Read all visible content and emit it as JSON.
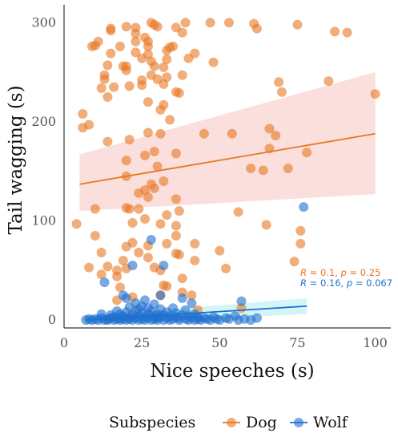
{
  "chart_data": {
    "type": "scatter",
    "xlabel": "Nice speeches (s)",
    "ylabel": "Tail wagging (s)",
    "xlim": [
      0,
      105
    ],
    "ylim": [
      -8,
      318
    ],
    "x_ticks": [
      0,
      25,
      50,
      75,
      100
    ],
    "y_ticks": [
      0,
      100,
      200,
      300
    ],
    "grid": false,
    "legend": {
      "title": "Subspecies",
      "position": "bottom"
    },
    "series": [
      {
        "name": "Dog",
        "color": "#E87722",
        "fill_color": "#F4B9B2",
        "regression": {
          "x": [
            5,
            100
          ],
          "y": [
            137,
            188
          ]
        },
        "confidence_band": {
          "x": [
            5,
            100
          ],
          "lower": [
            110,
            127
          ],
          "upper": [
            167,
            250
          ]
        },
        "stat_label": {
          "R": "0.1",
          "p": "0.25"
        },
        "points": [
          [
            4,
            97
          ],
          [
            6,
            208
          ],
          [
            6,
            194
          ],
          [
            8,
            197
          ],
          [
            9,
            276
          ],
          [
            10,
            277
          ],
          [
            10,
            112
          ],
          [
            8,
            53
          ],
          [
            10,
            85
          ],
          [
            11,
            281
          ],
          [
            12,
            234
          ],
          [
            12,
            68
          ],
          [
            12,
            46
          ],
          [
            13,
            243
          ],
          [
            13,
            247
          ],
          [
            14,
            257
          ],
          [
            14,
            54
          ],
          [
            14,
            225
          ],
          [
            14,
            180
          ],
          [
            15,
            292
          ],
          [
            15,
            294
          ],
          [
            15,
            269
          ],
          [
            16,
            235
          ],
          [
            17,
            50
          ],
          [
            17,
            44
          ],
          [
            17,
            20
          ],
          [
            18,
            276
          ],
          [
            18,
            33
          ],
          [
            19,
            256
          ],
          [
            19,
            60
          ],
          [
            20,
            296
          ],
          [
            20,
            252
          ],
          [
            20,
            161
          ],
          [
            20,
            145
          ],
          [
            20,
            113
          ],
          [
            20,
            74
          ],
          [
            20,
            52
          ],
          [
            20,
            256
          ],
          [
            21,
            236
          ],
          [
            21,
            182
          ],
          [
            21,
            112
          ],
          [
            22,
            98
          ],
          [
            22,
            78
          ],
          [
            22,
            23
          ],
          [
            23,
            295
          ],
          [
            23,
            281
          ],
          [
            23,
            270
          ],
          [
            23,
            289
          ],
          [
            24,
            128
          ],
          [
            24,
            112
          ],
          [
            24,
            68
          ],
          [
            25,
            264
          ],
          [
            25,
            242
          ],
          [
            25,
            237
          ],
          [
            26,
            285
          ],
          [
            26,
            166
          ],
          [
            26,
            131
          ],
          [
            26,
            102
          ],
          [
            27,
            281
          ],
          [
            27,
            276
          ],
          [
            27,
            268
          ],
          [
            27,
            220
          ],
          [
            27,
            189
          ],
          [
            27,
            124
          ],
          [
            27,
            75
          ],
          [
            27,
            63
          ],
          [
            28,
            300
          ],
          [
            28,
            261
          ],
          [
            28,
            247
          ],
          [
            28,
            137
          ],
          [
            29,
            298
          ],
          [
            29,
            256
          ],
          [
            29,
            170
          ],
          [
            29,
            133
          ],
          [
            29,
            53
          ],
          [
            30,
            296
          ],
          [
            30,
            243
          ],
          [
            30,
            155
          ],
          [
            31,
            212
          ],
          [
            31,
            188
          ],
          [
            31,
            97
          ],
          [
            31,
            50
          ],
          [
            31,
            25
          ],
          [
            32,
            255
          ],
          [
            32,
            238
          ],
          [
            32,
            217
          ],
          [
            32,
            140
          ],
          [
            32,
            35
          ],
          [
            33,
            272
          ],
          [
            33,
            263
          ],
          [
            33,
            245
          ],
          [
            33,
            106
          ],
          [
            33,
            77
          ],
          [
            33,
            34
          ],
          [
            34,
            275
          ],
          [
            34,
            202
          ],
          [
            35,
            276
          ],
          [
            36,
            295
          ],
          [
            36,
            230
          ],
          [
            36,
            168
          ],
          [
            36,
            122
          ],
          [
            36,
            95
          ],
          [
            36,
            85
          ],
          [
            36,
            67
          ],
          [
            37,
            229
          ],
          [
            37,
            110
          ],
          [
            37,
            66
          ],
          [
            38,
            290
          ],
          [
            38,
            247
          ],
          [
            38,
            42
          ],
          [
            38,
            28
          ],
          [
            39,
            300
          ],
          [
            40,
            264
          ],
          [
            41,
            25
          ],
          [
            42,
            269
          ],
          [
            42,
            77
          ],
          [
            42,
            60
          ],
          [
            43,
            10
          ],
          [
            45,
            188
          ],
          [
            47,
            300
          ],
          [
            48,
            260
          ],
          [
            50,
            70
          ],
          [
            52,
            52
          ],
          [
            53,
            300
          ],
          [
            54,
            188
          ],
          [
            56,
            109
          ],
          [
            57,
            12
          ],
          [
            60,
            153
          ],
          [
            61,
            299
          ],
          [
            62,
            294
          ],
          [
            64,
            151
          ],
          [
            65,
            96
          ],
          [
            66,
            193
          ],
          [
            66,
            173
          ],
          [
            68,
            186
          ],
          [
            69,
            240
          ],
          [
            70,
            230
          ],
          [
            72,
            153
          ],
          [
            74,
            59
          ],
          [
            75,
            298
          ],
          [
            76,
            90
          ],
          [
            76,
            77
          ],
          [
            78,
            169
          ],
          [
            85,
            241
          ],
          [
            87,
            291
          ],
          [
            91,
            290
          ],
          [
            100,
            228
          ]
        ]
      },
      {
        "name": "Wolf",
        "color": "#1F6FCF",
        "fill_color": "#9FE8F0",
        "regression": {
          "x": [
            7,
            78
          ],
          "y": [
            0,
            14
          ]
        },
        "confidence_band": {
          "x": [
            7,
            78
          ],
          "lower": [
            -5,
            6
          ],
          "upper": [
            4,
            22
          ]
        },
        "stat_label": {
          "R": "0.16",
          "p": "0.067"
        },
        "points": [
          [
            7,
            0
          ],
          [
            8,
            1
          ],
          [
            9,
            0
          ],
          [
            10,
            1
          ],
          [
            11,
            0
          ],
          [
            12,
            2
          ],
          [
            12,
            6
          ],
          [
            13,
            0
          ],
          [
            13,
            38
          ],
          [
            14,
            1
          ],
          [
            14,
            0
          ],
          [
            15,
            2
          ],
          [
            15,
            5
          ],
          [
            16,
            0
          ],
          [
            16,
            3
          ],
          [
            17,
            1
          ],
          [
            17,
            9
          ],
          [
            18,
            0
          ],
          [
            18,
            2
          ],
          [
            18,
            6
          ],
          [
            19,
            1
          ],
          [
            19,
            4
          ],
          [
            19,
            25
          ],
          [
            20,
            0
          ],
          [
            20,
            8
          ],
          [
            20,
            22
          ],
          [
            21,
            1
          ],
          [
            21,
            3
          ],
          [
            21,
            13
          ],
          [
            22,
            0
          ],
          [
            22,
            5
          ],
          [
            22,
            55
          ],
          [
            23,
            2
          ],
          [
            23,
            17
          ],
          [
            23,
            9
          ],
          [
            24,
            0
          ],
          [
            24,
            4
          ],
          [
            24,
            11
          ],
          [
            25,
            1
          ],
          [
            25,
            7
          ],
          [
            25,
            14
          ],
          [
            26,
            0
          ],
          [
            26,
            3
          ],
          [
            26,
            20
          ],
          [
            27,
            2
          ],
          [
            27,
            6
          ],
          [
            27,
            12
          ],
          [
            28,
            0
          ],
          [
            28,
            9
          ],
          [
            28,
            81
          ],
          [
            29,
            1
          ],
          [
            29,
            4
          ],
          [
            29,
            16
          ],
          [
            30,
            0
          ],
          [
            30,
            6
          ],
          [
            30,
            2
          ],
          [
            31,
            3
          ],
          [
            31,
            11
          ],
          [
            31,
            25
          ],
          [
            32,
            0
          ],
          [
            32,
            5
          ],
          [
            32,
            55
          ],
          [
            33,
            2
          ],
          [
            33,
            8
          ],
          [
            34,
            0
          ],
          [
            34,
            4
          ],
          [
            35,
            1
          ],
          [
            35,
            12
          ],
          [
            36,
            3
          ],
          [
            36,
            7
          ],
          [
            37,
            0
          ],
          [
            37,
            2
          ],
          [
            38,
            5
          ],
          [
            38,
            22
          ],
          [
            39,
            1
          ],
          [
            39,
            10
          ],
          [
            40,
            0
          ],
          [
            40,
            4
          ],
          [
            41,
            2
          ],
          [
            41,
            17
          ],
          [
            42,
            0
          ],
          [
            42,
            6
          ],
          [
            43,
            1
          ],
          [
            43,
            3
          ],
          [
            44,
            0
          ],
          [
            45,
            2
          ],
          [
            46,
            1
          ],
          [
            47,
            0
          ],
          [
            48,
            3
          ],
          [
            49,
            1
          ],
          [
            50,
            0
          ],
          [
            52,
            2
          ],
          [
            53,
            1
          ],
          [
            55,
            4
          ],
          [
            56,
            0
          ],
          [
            57,
            19
          ],
          [
            58,
            1
          ],
          [
            60,
            0
          ],
          [
            62,
            2
          ],
          [
            77,
            114
          ]
        ]
      }
    ]
  }
}
